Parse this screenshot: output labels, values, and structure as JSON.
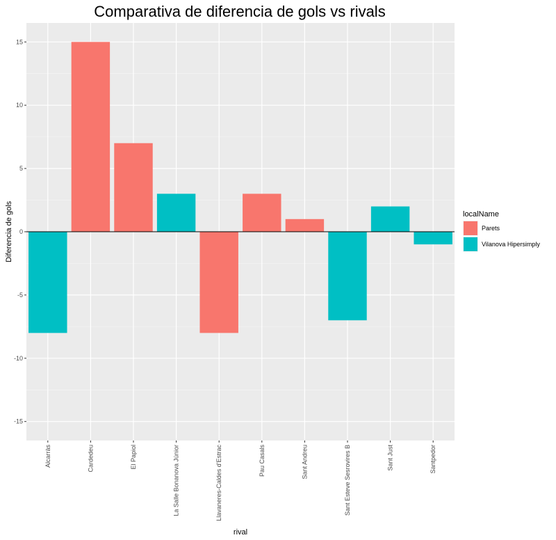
{
  "chart_data": {
    "type": "bar",
    "title": "Comparativa de diferencia de gols vs rivals",
    "xlabel": "rival",
    "ylabel": "Diferencia de gols",
    "ylim": [
      -16.5,
      16.5
    ],
    "yticks": [
      -15,
      -10,
      -5,
      0,
      5,
      10,
      15
    ],
    "grid": true,
    "legend_position": "right",
    "legend_title": "localName",
    "legend": [
      {
        "name": "Parets",
        "color": "#F8766D"
      },
      {
        "name": "Vilanova Hipersimply",
        "color": "#00BFC4"
      }
    ],
    "categories": [
      "Alcarràs",
      "Cardedeu",
      "El Papiol",
      "La Salle Bonanova Júnior",
      "Llavaneres-Caldes d'Estrac",
      "Pau Casals",
      "Sant Andreu",
      "Sant Esteve Sesrovires B",
      "Sant Just",
      "Santpedor"
    ],
    "values": [
      -8,
      15,
      7,
      3,
      -8,
      3,
      1,
      -7,
      2,
      -1
    ],
    "groups": [
      "Vilanova Hipersimply",
      "Parets",
      "Parets",
      "Vilanova Hipersimply",
      "Parets",
      "Parets",
      "Parets",
      "Vilanova Hipersimply",
      "Vilanova Hipersimply",
      "Vilanova Hipersimply"
    ]
  }
}
